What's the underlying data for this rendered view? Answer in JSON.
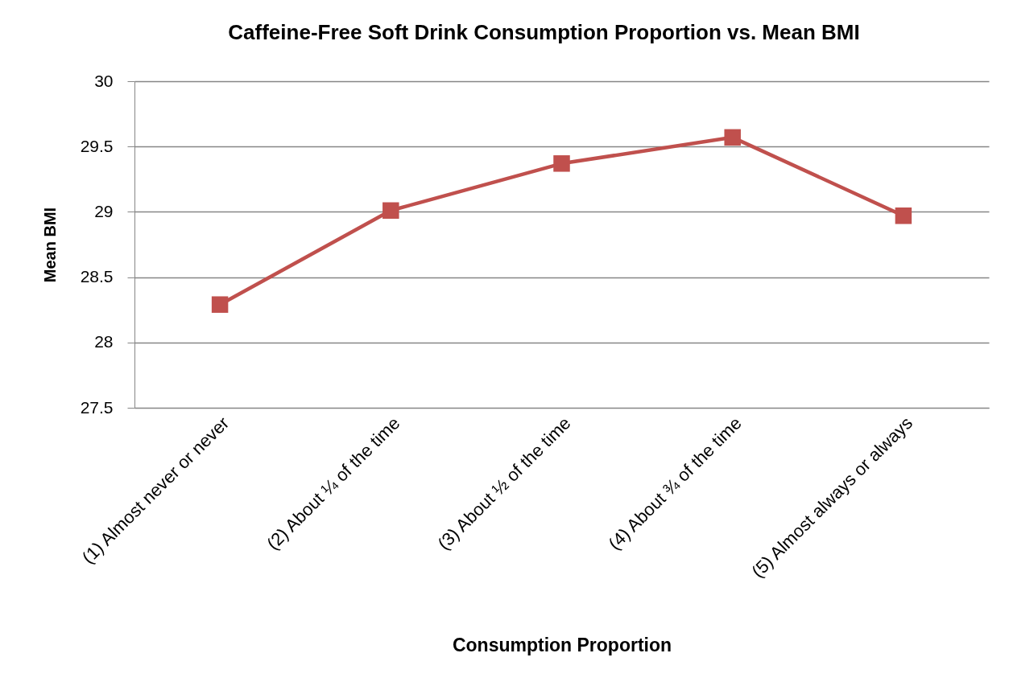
{
  "chart_data": {
    "type": "line",
    "title": "Caffeine-Free Soft Drink Consumption Proportion vs. Mean BMI",
    "xlabel": "Consumption Proportion",
    "ylabel": "Mean BMI",
    "categories": [
      "(1) Almost never or never",
      "(2) About ¼ of the time",
      "(3) About ½ of the time",
      "(4) About ¾ of the time",
      "(5) Almost always or always"
    ],
    "series": [
      {
        "color": "#c0504d",
        "values": [
          28.29,
          29.01,
          29.37,
          29.57,
          28.97
        ]
      }
    ],
    "ylim": [
      27.5,
      30
    ],
    "yticks": [
      27.5,
      28,
      28.5,
      29,
      29.5,
      30
    ],
    "grid": "y",
    "marker": "square",
    "line_style": "solid"
  }
}
